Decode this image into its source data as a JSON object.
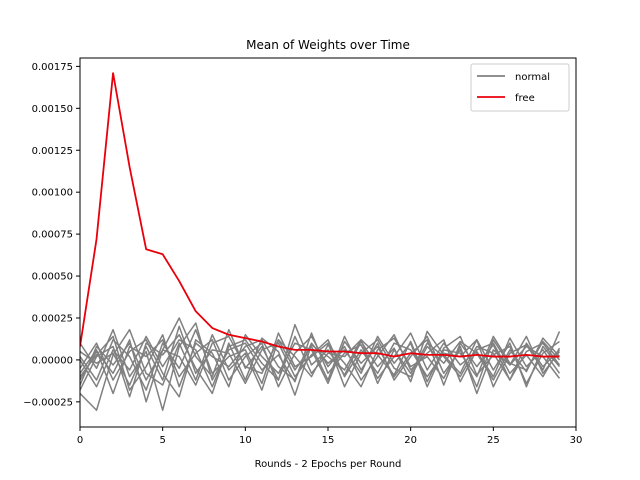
{
  "chart_data": {
    "type": "line",
    "title": "Mean of Weights over Time",
    "xlabel": "Rounds - 2 Epochs per Round",
    "ylabel": "",
    "xlim": [
      0,
      30
    ],
    "ylim": [
      -0.0004,
      0.0018
    ],
    "xticks": [
      0,
      5,
      10,
      15,
      20,
      25,
      30
    ],
    "xtick_labels": [
      "0",
      "5",
      "10",
      "15",
      "20",
      "25",
      "30"
    ],
    "yticks": [
      -0.00025,
      0,
      0.00025,
      0.0005,
      0.00075,
      0.001,
      0.00125,
      0.0015,
      0.00175
    ],
    "ytick_labels": [
      "−0.00025",
      "0.00000",
      "0.00025",
      "0.00050",
      "0.00075",
      "0.00100",
      "0.00125",
      "0.00150",
      "0.00175"
    ],
    "grid": false,
    "legend_position": "top-right",
    "legend": [
      {
        "label": "normal",
        "color": "#808080"
      },
      {
        "label": "free",
        "color": "#e8000b"
      }
    ],
    "x": [
      0,
      1,
      2,
      3,
      4,
      5,
      6,
      7,
      8,
      9,
      10,
      11,
      12,
      13,
      14,
      15,
      16,
      17,
      18,
      19,
      20,
      21,
      22,
      23,
      24,
      25,
      26,
      27,
      28,
      29
    ],
    "free_series": {
      "name": "free",
      "color": "#e8000b",
      "values": [
        8e-05,
        0.00072,
        0.00171,
        0.00115,
        0.00066,
        0.00063,
        0.00047,
        0.00029,
        0.00019,
        0.00015,
        0.00013,
        0.00011,
        8e-05,
        6e-05,
        6e-05,
        5e-05,
        5e-05,
        4e-05,
        4e-05,
        2e-05,
        4e-05,
        3e-05,
        3e-05,
        2e-05,
        3e-05,
        2e-05,
        2e-05,
        3e-05,
        2e-05,
        2e-05
      ]
    },
    "normal_series": {
      "name": "normal",
      "color": "#808080",
      "lines": [
        [
          -0.00012,
          5e-05,
          -8e-05,
          0.00012,
          -0.00025,
          6e-05,
          0.00025,
          2e-05,
          -0.0001,
          0.00018,
          -5e-05,
          8e-05,
          -0.00012,
          0.00021,
          -3e-05,
          6e-05,
          -9e-05,
          0.00011,
          -4e-05,
          7e-05,
          -0.00013,
          0.00017,
          3e-05,
          -8e-05,
          0.00012,
          -0.00016,
          4e-05,
          9e-05,
          -6e-05,
          0.00017
        ],
        [
          -0.0002,
          -0.0003,
          3e-05,
          0.00018,
          -8e-05,
          -0.00015,
          0.0001,
          -0.00012,
          0.00015,
          -6e-05,
          4e-05,
          -0.00018,
          0.00012,
          2e-05,
          -0.0001,
          9e-05,
          -2e-05,
          -0.00016,
          6e-05,
          0.00013,
          -4e-05,
          2e-05,
          -0.00011,
          8e-05,
          -0.0002,
          6e-05,
          -3e-05,
          0.00014,
          -8e-05,
          5e-05
        ],
        [
          0.0001,
          -5e-05,
          0.00018,
          -0.0001,
          5e-05,
          -0.0003,
          8e-05,
          0.00022,
          -0.00012,
          6e-05,
          0.0001,
          -6e-05,
          3e-05,
          -0.00013,
          0.00016,
          -8e-05,
          4e-05,
          9e-05,
          -0.00011,
          2e-05,
          0.00016,
          -6e-05,
          0.0001,
          -3e-05,
          5e-05,
          -0.0001,
          0.00013,
          -4e-05,
          6e-05,
          -8e-05
        ],
        [
          -5e-05,
          0.0001,
          -0.00012,
          5e-05,
          0.00012,
          -8e-05,
          -0.00022,
          0.00012,
          4e-05,
          -0.00016,
          0.00015,
          2e-05,
          -8e-05,
          0.0001,
          6e-05,
          -0.00014,
          0.00011,
          -2e-05,
          8e-05,
          -0.0001,
          4e-05,
          0.00012,
          -0.00015,
          0.0001,
          -4e-05,
          9e-05,
          -0.00012,
          5e-05,
          0.0001,
          -3e-05
        ],
        [
          -0.00018,
          2e-05,
          8e-05,
          -0.00022,
          0.0001,
          3e-05,
          0.00015,
          -5e-05,
          -0.0002,
          0.0001,
          -0.00012,
          0.00013,
          5e-05,
          -0.00021,
          9e-05,
          2e-05,
          -6e-05,
          0.00012,
          3e-05,
          -9e-05,
          0.00011,
          -0.00013,
          7e-05,
          0.00014,
          -9e-05,
          3e-05,
          8e-05,
          -0.00014,
          4e-05,
          0.00011
        ],
        [
          2e-05,
          -0.00012,
          0.00012,
          2e-05,
          -0.00018,
          0.0001,
          -5e-05,
          0.00018,
          -8e-05,
          2e-05,
          6e-05,
          -0.00014,
          0.00016,
          -4e-05,
          2e-05,
          0.0001,
          -0.00016,
          4e-05,
          0.00012,
          -5e-05,
          -0.0001,
          8e-05,
          -2e-05,
          0.00011,
          4e-05,
          -0.00012,
          6e-05,
          -7e-05,
          0.00013,
          2e-05
        ],
        [
          -8e-05,
          6e-05,
          -0.0002,
          8e-05,
          2e-05,
          0.00012,
          -0.0001,
          4e-05,
          0.00012,
          -0.00012,
          2e-05,
          0.0001,
          -0.00016,
          4e-05,
          0.00014,
          -4e-05,
          8e-05,
          -0.00012,
          2e-05,
          0.00015,
          -6e-05,
          4e-05,
          0.00012,
          -0.00013,
          6e-05,
          0.0001,
          -8e-05,
          3e-05,
          -0.0001,
          7e-05
        ],
        [
          5e-05,
          -2e-05,
          4e-05,
          -0.00015,
          8e-05,
          -0.00012,
          0.0002,
          -8e-05,
          6e-05,
          4e-05,
          -0.00014,
          6e-05,
          0.0001,
          -0.0001,
          3e-05,
          0.00012,
          -0.0001,
          6e-05,
          -8e-05,
          0.0001,
          6e-05,
          -0.0001,
          4e-05,
          2e-05,
          0.00012,
          -6e-05,
          0.0001,
          -0.00016,
          8e-05,
          -4e-05
        ],
        [
          -0.00015,
          8e-05,
          -3e-05,
          0.0001,
          -0.00012,
          6e-05,
          2e-05,
          -0.00015,
          0.0001,
          0.00014,
          -4e-05,
          -8e-05,
          0.00012,
          -6e-05,
          8e-05,
          -0.00012,
          0.00014,
          -6e-05,
          0.0001,
          -0.00012,
          2e-05,
          0.00014,
          -8e-05,
          6e-05,
          -0.00016,
          0.00012,
          -3e-05,
          8e-05,
          2e-05,
          -0.00011
        ],
        [
          0.0,
          -0.00016,
          6e-05,
          -6e-05,
          0.00014,
          -4e-05,
          0.00012,
          6e-05,
          -0.00016,
          8e-05,
          0.00012,
          -2e-05,
          -0.00012,
          0.00014,
          -8e-05,
          4e-05,
          2e-05,
          0.00012,
          -0.00014,
          6e-05,
          -8e-05,
          0.0001,
          2e-05,
          -0.0001,
          8e-05,
          4e-05,
          -0.00012,
          0.0001,
          -4e-05,
          6e-05
        ],
        [
          -0.0001,
          3e-05,
          0.00014,
          -0.00018,
          -4e-05,
          0.00015,
          -0.00016,
          0.0001,
          2e-05,
          -4e-05,
          8e-05,
          0.00012,
          -4e-05,
          -0.00012,
          0.0001,
          -2e-05,
          6e-05,
          -8e-05,
          0.00014,
          -2e-05,
          0.0001,
          -0.00016,
          6e-05,
          4e-05,
          -0.0001,
          0.00014,
          -2e-05,
          -6e-05,
          0.00011,
          0.0
        ]
      ]
    }
  }
}
